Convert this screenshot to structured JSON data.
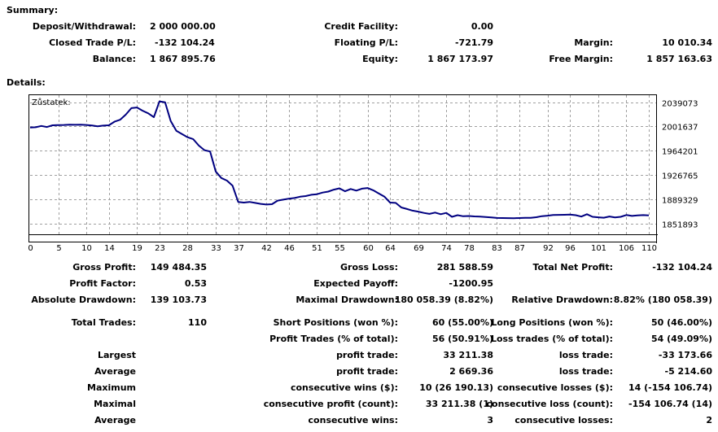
{
  "summary": {
    "heading": "Summary:",
    "rows": [
      [
        {
          "label": "Deposit/Withdrawal:",
          "value": "2 000 000.00"
        },
        {
          "label": "Credit Facility:",
          "value": "0.00"
        },
        {
          "label": "",
          "value": ""
        }
      ],
      [
        {
          "label": "Closed Trade P/L:",
          "value": "-132 104.24"
        },
        {
          "label": "Floating P/L:",
          "value": "-721.79"
        },
        {
          "label": "Margin:",
          "value": "10 010.34"
        }
      ],
      [
        {
          "label": "Balance:",
          "value": "1 867 895.76"
        },
        {
          "label": "Equity:",
          "value": "1 867 173.97"
        },
        {
          "label": "Free Margin:",
          "value": "1 857 163.63"
        }
      ]
    ]
  },
  "details": {
    "heading": "Details:",
    "rows_a": [
      [
        {
          "label": "Gross Profit:",
          "value": "149 484.35"
        },
        {
          "label": "Gross Loss:",
          "value": "281 588.59"
        },
        {
          "label": "Total Net Profit:",
          "value": "-132 104.24"
        }
      ],
      [
        {
          "label": "Profit Factor:",
          "value": "0.53"
        },
        {
          "label": "Expected Payoff:",
          "value": "-1200.95"
        },
        {
          "label": "",
          "value": ""
        }
      ],
      [
        {
          "label": "Absolute Drawdown:",
          "value": "139 103.73"
        },
        {
          "label": "Maximal Drawdown:",
          "value": "180 058.39 (8.82%)"
        },
        {
          "label": "Relative Drawdown:",
          "value": "8.82% (180 058.39)"
        }
      ]
    ],
    "rows_b": [
      [
        {
          "label": "Total Trades:",
          "value": "110"
        },
        {
          "label": "Short Positions (won %):",
          "value": "60 (55.00%)"
        },
        {
          "label": "Long Positions (won %):",
          "value": "50 (46.00%)"
        }
      ],
      [
        {
          "label": "",
          "value": ""
        },
        {
          "label": "Profit Trades (% of total):",
          "value": "56 (50.91%)"
        },
        {
          "label": "Loss trades (% of total):",
          "value": "54 (49.09%)"
        }
      ],
      [
        {
          "label": "Largest",
          "value": ""
        },
        {
          "label": "profit trade:",
          "value": "33 211.38"
        },
        {
          "label": "loss trade:",
          "value": "-33 173.66"
        }
      ],
      [
        {
          "label": "Average",
          "value": ""
        },
        {
          "label": "profit trade:",
          "value": "2 669.36"
        },
        {
          "label": "loss trade:",
          "value": "-5 214.60"
        }
      ],
      [
        {
          "label": "Maximum",
          "value": ""
        },
        {
          "label": "consecutive wins ($):",
          "value": "10 (26 190.13)"
        },
        {
          "label": "consecutive losses ($):",
          "value": "14 (-154 106.74)"
        }
      ],
      [
        {
          "label": "Maximal",
          "value": ""
        },
        {
          "label": "consecutive profit (count):",
          "value": "33 211.38 (1)"
        },
        {
          "label": "consecutive loss (count):",
          "value": "-154 106.74 (14)"
        }
      ],
      [
        {
          "label": "Average",
          "value": ""
        },
        {
          "label": "consecutive wins:",
          "value": "3"
        },
        {
          "label": "consecutive losses:",
          "value": "2"
        }
      ]
    ]
  },
  "chart_data": {
    "type": "line",
    "title": "Zůstatek:",
    "line_color": "#000080",
    "grid": true,
    "grid_style": "dashed",
    "x_ticks": [
      "0",
      "5",
      "10",
      "14",
      "19",
      "23",
      "28",
      "33",
      "37",
      "42",
      "46",
      "51",
      "55",
      "60",
      "64",
      "69",
      "74",
      "78",
      "83",
      "87",
      "92",
      "96",
      "101",
      "106",
      "110"
    ],
    "y_ticks": [
      "2039073",
      "2001637",
      "1964201",
      "1926765",
      "1889329",
      "1851893"
    ],
    "xlim": [
      0,
      110
    ],
    "ylim": [
      1845000,
      2050000
    ],
    "series": [
      {
        "x": [
          0,
          1,
          2,
          3,
          4,
          5,
          6,
          7,
          8,
          9,
          10,
          11,
          12,
          13,
          14,
          15,
          16,
          17,
          18,
          19,
          20,
          21,
          22,
          23,
          24,
          25,
          26,
          27,
          28,
          29,
          30,
          31,
          32,
          33,
          34,
          35,
          36,
          37,
          38,
          39,
          40,
          41,
          42,
          43,
          44,
          45,
          46,
          47,
          48,
          49,
          50,
          51,
          52,
          53,
          54,
          55,
          56,
          57,
          58,
          59,
          60,
          61,
          62,
          63,
          64,
          65,
          66,
          67,
          68,
          69,
          70,
          71,
          72,
          73,
          74,
          75,
          76,
          77,
          78,
          79,
          80,
          81,
          82,
          83,
          84,
          85,
          86,
          87,
          88,
          89,
          90,
          91,
          92,
          93,
          94,
          95,
          96,
          97,
          98,
          99,
          100,
          101,
          102,
          103,
          104,
          105,
          106,
          107,
          108,
          109,
          110
        ],
        "y": [
          2000000,
          2000400,
          2002500,
          2000800,
          2003500,
          2003800,
          2004000,
          2004300,
          2004200,
          2004500,
          2004000,
          2003200,
          2001800,
          2003000,
          2003500,
          2009000,
          2012000,
          2020000,
          2030000,
          2031000,
          2026000,
          2022000,
          2016000,
          2040500,
          2039000,
          2010000,
          1995000,
          1990000,
          1985000,
          1982000,
          1972000,
          1965000,
          1963000,
          1932000,
          1922000,
          1918000,
          1910000,
          1885000,
          1884000,
          1885000,
          1883500,
          1882000,
          1881000,
          1881500,
          1887000,
          1888500,
          1890000,
          1891000,
          1893000,
          1894000,
          1896000,
          1897000,
          1899500,
          1901000,
          1904000,
          1906000,
          1901500,
          1905000,
          1902500,
          1905500,
          1906500,
          1903000,
          1898000,
          1893000,
          1884000,
          1883500,
          1876500,
          1874000,
          1871500,
          1870000,
          1868000,
          1866500,
          1868500,
          1866000,
          1868000,
          1862000,
          1864500,
          1862800,
          1863200,
          1862600,
          1862200,
          1861600,
          1861000,
          1860200,
          1860100,
          1860000,
          1859800,
          1860100,
          1860500,
          1860300,
          1861300,
          1863000,
          1863800,
          1864700,
          1865000,
          1865100,
          1865400,
          1864500,
          1862300,
          1866000,
          1862000,
          1861200,
          1860600,
          1862500,
          1861100,
          1862000,
          1864800,
          1863300,
          1864100,
          1864600,
          1864300
        ]
      }
    ]
  }
}
